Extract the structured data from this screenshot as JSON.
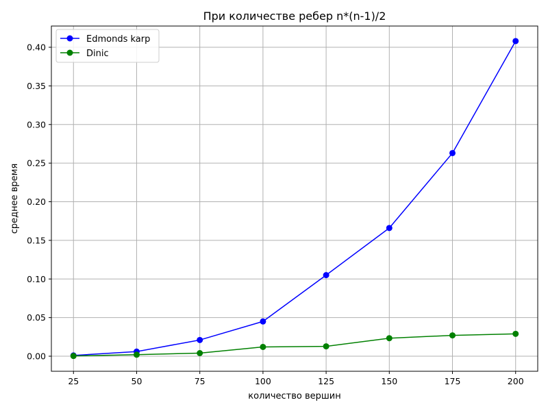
{
  "chart_data": {
    "type": "line",
    "title": "При количестве ребер n*(n-1)/2",
    "xlabel": "количество вершин",
    "ylabel": "среднее время",
    "x": [
      25,
      50,
      75,
      100,
      125,
      150,
      175,
      200
    ],
    "xlim": [
      16.25,
      208.75
    ],
    "ylim": [
      -0.0195,
      0.4275
    ],
    "xticks": [
      25,
      50,
      75,
      100,
      125,
      150,
      175,
      200
    ],
    "xtick_labels": [
      "25",
      "50",
      "75",
      "100",
      "125",
      "150",
      "175",
      "200"
    ],
    "yticks": [
      0.0,
      0.05,
      0.1,
      0.15,
      0.2,
      0.25,
      0.3,
      0.35,
      0.4
    ],
    "ytick_labels": [
      "0.00",
      "0.05",
      "0.10",
      "0.15",
      "0.20",
      "0.25",
      "0.30",
      "0.35",
      "0.40"
    ],
    "grid": true,
    "legend_position": "top-left",
    "series": [
      {
        "name": "Edmonds karp",
        "color": "#0000ff",
        "marker": "circle",
        "values": [
          0.001,
          0.006,
          0.021,
          0.045,
          0.105,
          0.166,
          0.263,
          0.408
        ]
      },
      {
        "name": "Dinic",
        "color": "#008000",
        "marker": "circle",
        "values": [
          0.0003,
          0.002,
          0.004,
          0.012,
          0.0128,
          0.0233,
          0.027,
          0.029
        ]
      }
    ]
  }
}
